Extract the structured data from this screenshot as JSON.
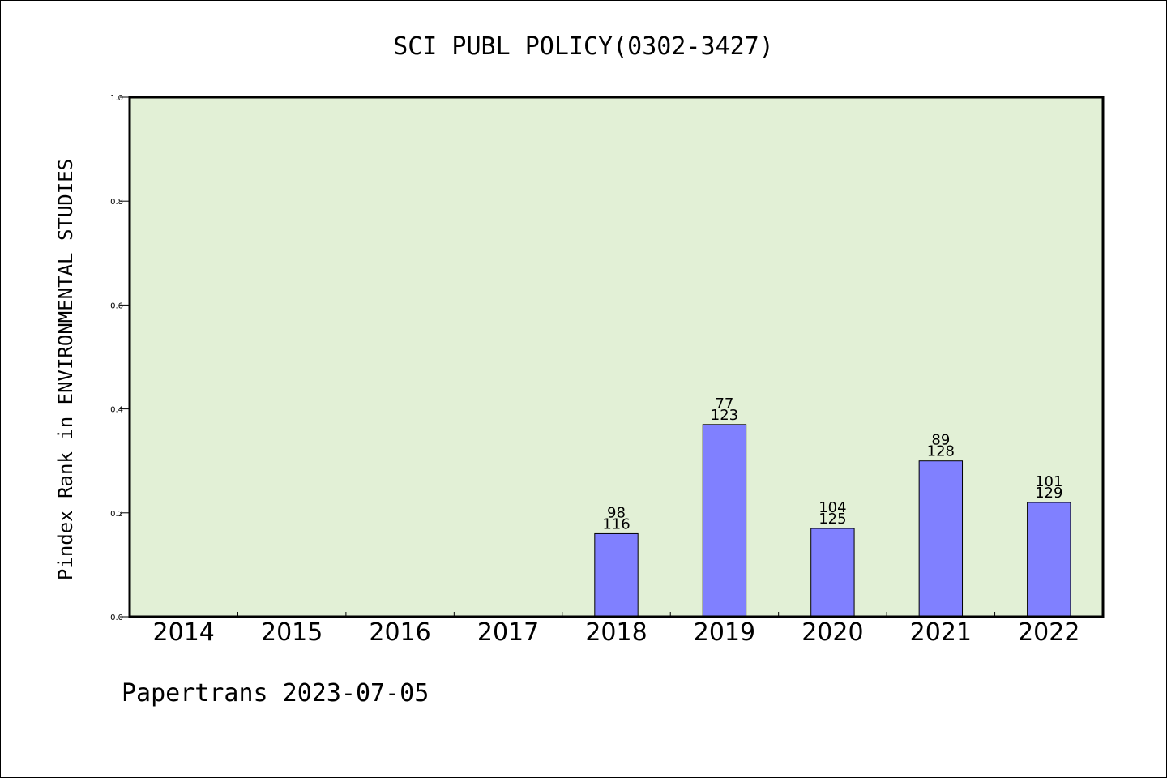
{
  "chart_data": {
    "type": "bar",
    "title": "SCI PUBL POLICY(0302-3427)",
    "xlabel": "",
    "ylabel": "Pindex Rank in ENVIRONMENTAL STUDIES",
    "categories": [
      "2014",
      "2015",
      "2016",
      "2017",
      "2018",
      "2019",
      "2020",
      "2021",
      "2022"
    ],
    "values": [
      null,
      null,
      null,
      null,
      0.16,
      0.37,
      0.17,
      0.3,
      0.22
    ],
    "rank": [
      null,
      null,
      null,
      null,
      "98",
      "77",
      "104",
      "89",
      "101"
    ],
    "total": [
      null,
      null,
      null,
      null,
      "116",
      "123",
      "125",
      "128",
      "129"
    ],
    "ylim": [
      0,
      1.0
    ],
    "yticks": [
      "0.0",
      "0.2",
      "0.4",
      "0.6",
      "0.8",
      "1.0"
    ],
    "grid": false,
    "legend": "none",
    "colors": {
      "plot_background": "#e2f0d6",
      "bar": "#8080ff",
      "axis": "#000000"
    }
  },
  "footer": {
    "text": "Papertrans 2023-07-05"
  }
}
